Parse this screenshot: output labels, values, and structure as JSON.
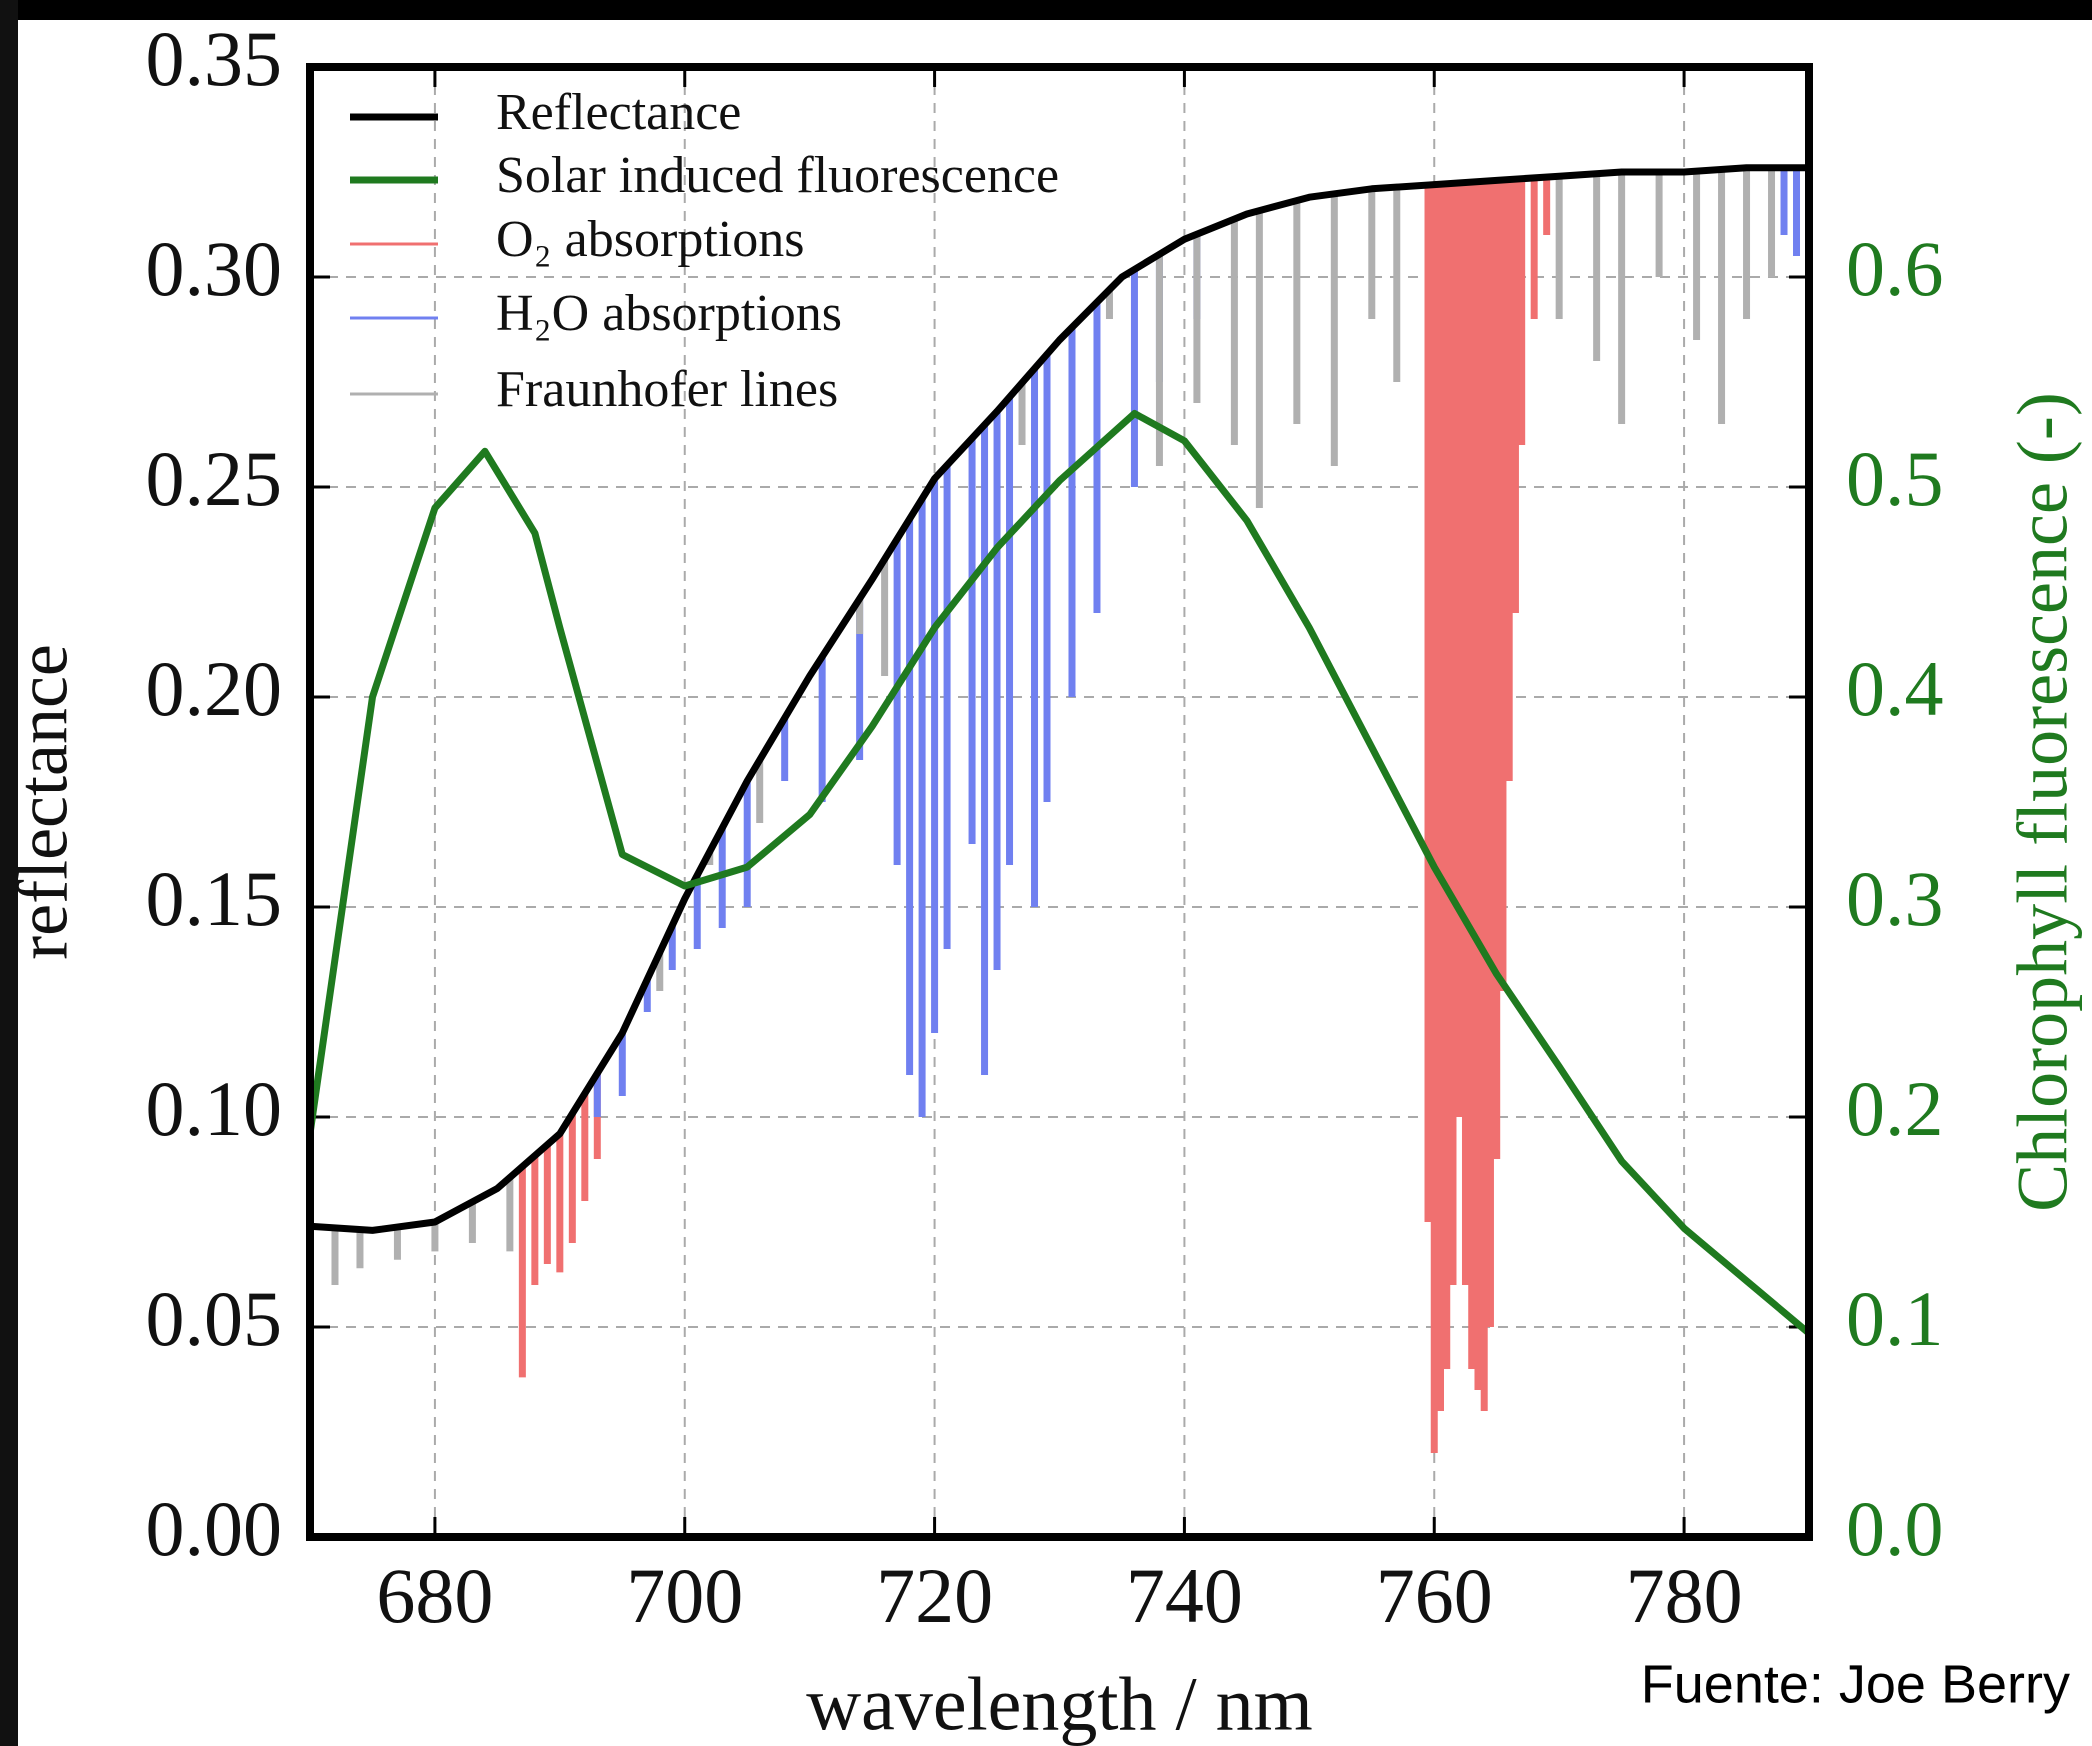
{
  "chart_data": {
    "type": "line",
    "xlabel": "wavelength / nm",
    "ylabel": "reflectance",
    "y2label": "Chlorophyll fluorescence (-)",
    "source": "Fuente: Joe Berry",
    "xlim": [
      670,
      790
    ],
    "xticks": [
      680,
      700,
      720,
      740,
      760,
      780
    ],
    "ylim": [
      0,
      0.35
    ],
    "yticks": [
      {
        "value": 0,
        "label": "0.00"
      },
      {
        "value": 0.05,
        "label": "0.05"
      },
      {
        "value": 0.1,
        "label": "0.10"
      },
      {
        "value": 0.15,
        "label": "0.15"
      },
      {
        "value": 0.2,
        "label": "0.20"
      },
      {
        "value": 0.25,
        "label": "0.25"
      },
      {
        "value": 0.3,
        "label": "0.30"
      },
      {
        "value": 0.35,
        "label": "0.35"
      }
    ],
    "y2lim": [
      0,
      0.7
    ],
    "y2ticks": [
      {
        "value": 0,
        "label": "0.0"
      },
      0.1,
      0.2,
      0.3,
      0.4,
      0.5,
      0.6
    ],
    "grid": true,
    "legend": "upper left",
    "series": [
      {
        "name": "Reflectance",
        "style": "line",
        "color": "#000000",
        "x": [
          670,
          675,
          680,
          685,
          690,
          695,
          700,
          705,
          710,
          715,
          720,
          725,
          730,
          735,
          740,
          745,
          750,
          755,
          760,
          765,
          770,
          775,
          780,
          785,
          790
        ],
        "values": [
          0.074,
          0.073,
          0.075,
          0.083,
          0.096,
          0.12,
          0.152,
          0.18,
          0.205,
          0.228,
          0.252,
          0.268,
          0.285,
          0.3,
          0.309,
          0.315,
          0.319,
          0.321,
          0.322,
          0.323,
          0.324,
          0.325,
          0.325,
          0.326,
          0.326
        ]
      },
      {
        "name": "Solar induced fluorescence",
        "style": "line",
        "color": "#1f7a1f",
        "axis": "y2",
        "x": [
          670,
          675,
          680,
          684,
          688,
          690,
          695,
          700,
          705,
          710,
          715,
          720,
          725,
          730,
          736,
          740,
          745,
          750,
          755,
          760,
          765,
          770,
          775,
          780,
          785,
          790
        ],
        "values": [
          0.192,
          0.4,
          0.49,
          0.517,
          0.478,
          0.433,
          0.325,
          0.31,
          0.319,
          0.344,
          0.386,
          0.433,
          0.471,
          0.503,
          0.535,
          0.522,
          0.484,
          0.433,
          0.376,
          0.319,
          0.268,
          0.224,
          0.179,
          0.147,
          0.122,
          0.097
        ]
      },
      {
        "name": "O₂ absorptions",
        "style": "lines",
        "color": "#f07070",
        "x": [
          687,
          688,
          689,
          690,
          691,
          692,
          693,
          759.5,
          760,
          760.5,
          761,
          761.5,
          762,
          762.5,
          763,
          763.5,
          764,
          764.5,
          765,
          765.5,
          766,
          766.5,
          767,
          768,
          769
        ],
        "values": [
          0.038,
          0.06,
          0.065,
          0.063,
          0.07,
          0.08,
          0.09,
          0.075,
          0.02,
          0.03,
          0.04,
          0.06,
          0.1,
          0.06,
          0.04,
          0.035,
          0.03,
          0.05,
          0.09,
          0.13,
          0.18,
          0.22,
          0.26,
          0.29,
          0.31
        ]
      },
      {
        "name": "H₂O absorptions",
        "style": "lines",
        "color": "#7080f0",
        "x": [
          693,
          695,
          697,
          699,
          701,
          703,
          705,
          708,
          711,
          714,
          717,
          718,
          719,
          720,
          721,
          723,
          724,
          725,
          726,
          728,
          729,
          731,
          733,
          736,
          738,
          741,
          788,
          789
        ],
        "values": [
          0.1,
          0.105,
          0.125,
          0.135,
          0.14,
          0.145,
          0.15,
          0.18,
          0.175,
          0.185,
          0.16,
          0.11,
          0.1,
          0.12,
          0.14,
          0.165,
          0.11,
          0.135,
          0.16,
          0.15,
          0.175,
          0.2,
          0.22,
          0.25,
          0.275,
          0.29,
          0.31,
          0.305
        ]
      },
      {
        "name": "Fraunhofer lines",
        "style": "lines",
        "color": "#b0b0b0",
        "x": [
          672,
          674,
          677,
          680,
          683,
          686,
          698,
          702,
          706,
          709,
          714,
          716,
          727,
          734,
          738,
          741,
          744,
          746,
          749,
          752,
          755,
          757,
          770,
          773,
          775,
          778,
          781,
          783,
          785,
          787
        ],
        "values": [
          0.06,
          0.064,
          0.066,
          0.068,
          0.07,
          0.068,
          0.13,
          0.16,
          0.17,
          0.2,
          0.215,
          0.205,
          0.26,
          0.29,
          0.255,
          0.27,
          0.26,
          0.245,
          0.265,
          0.255,
          0.29,
          0.275,
          0.29,
          0.28,
          0.265,
          0.3,
          0.285,
          0.265,
          0.29,
          0.3
        ]
      }
    ]
  }
}
